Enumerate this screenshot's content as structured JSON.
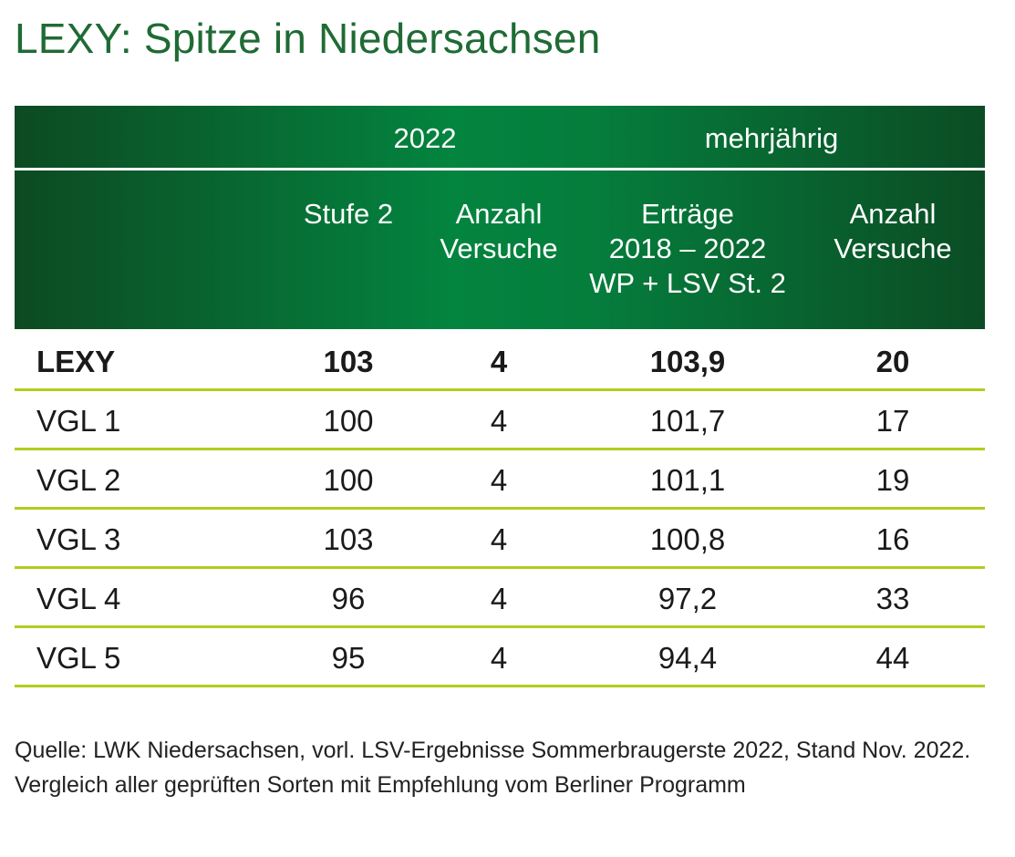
{
  "title": "LEXY: Spitze in Niedersachsen",
  "table": {
    "group_headers": [
      "2022",
      "mehrjährig"
    ],
    "columns": [
      "Stufe 2",
      "Anzahl Versuche",
      "Erträge 2018 – 2022 WP + LSV St. 2",
      "Anzahl Versuche"
    ],
    "column_lines": [
      [
        "Stufe 2"
      ],
      [
        "Anzahl",
        "Versuche"
      ],
      [
        "Erträge",
        "2018 – 2022",
        "WP + LSV St. 2"
      ],
      [
        "Anzahl",
        "Versuche"
      ]
    ],
    "rows": [
      {
        "name": "LEXY",
        "values": [
          "103",
          "4",
          "103,9",
          "20"
        ],
        "highlight": true
      },
      {
        "name": "VGL 1",
        "values": [
          "100",
          "4",
          "101,7",
          "17"
        ]
      },
      {
        "name": "VGL 2",
        "values": [
          "100",
          "4",
          "101,1",
          "19"
        ]
      },
      {
        "name": "VGL 3",
        "values": [
          "103",
          "4",
          "100,8",
          "16"
        ]
      },
      {
        "name": "VGL 4",
        "values": [
          "96",
          "4",
          "97,2",
          "33"
        ]
      },
      {
        "name": "VGL 5",
        "values": [
          "95",
          "4",
          "94,4",
          "44"
        ]
      }
    ]
  },
  "source": "Quelle: LWK Niedersachsen, vorl. LSV-Ergebnisse Sommerbraugerste 2022, Stand Nov. 2022. Vergleich aller geprüften Sorten mit Empfehlung vom Berliner Programm",
  "colors": {
    "title": "#1f6b34",
    "header_dark": "#0d4a22",
    "header_light": "#03843f",
    "row_separator": "#b3cc1e"
  }
}
